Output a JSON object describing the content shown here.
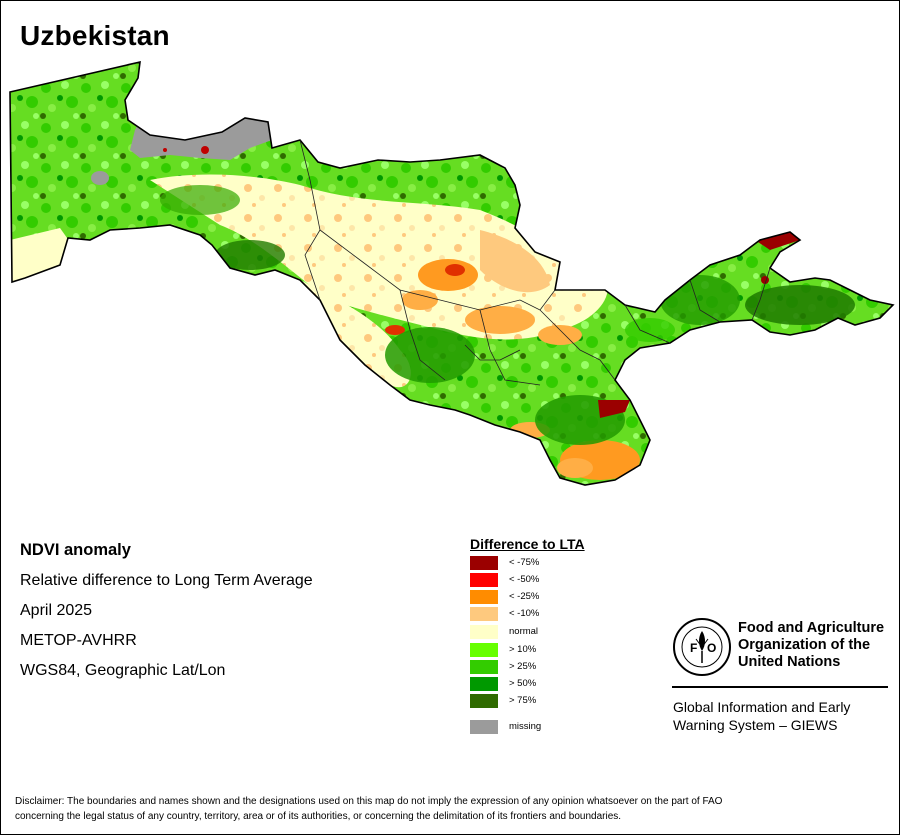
{
  "title": "Uzbekistan",
  "info": {
    "line1": "NDVI anomaly",
    "line2": "Relative difference to Long Term Average",
    "line3": "April 2025",
    "line4": "METOP-AVHRR",
    "line5": "WGS84, Geographic Lat/Lon"
  },
  "legend": {
    "title": "Difference to LTA",
    "items": [
      {
        "label": "< -75%",
        "color": "#9b0000"
      },
      {
        "label": "< -50%",
        "color": "#ff0000"
      },
      {
        "label": "< -25%",
        "color": "#ff8c00"
      },
      {
        "label": "< -10%",
        "color": "#fec97e"
      },
      {
        "label": "normal",
        "color": "#ffffc8"
      },
      {
        "label": "> 10%",
        "color": "#66ff00"
      },
      {
        "label": "> 25%",
        "color": "#33cc00"
      },
      {
        "label": "> 50%",
        "color": "#009900"
      },
      {
        "label": "> 75%",
        "color": "#2f6b00"
      },
      {
        "label": "missing",
        "color": "#9b9b9b"
      }
    ]
  },
  "fao": {
    "logo_text": "FAO",
    "logo_motto": "FIAT PANIS",
    "name_line1": "Food and Agriculture",
    "name_line2": "Organization of the",
    "name_line3": "United Nations",
    "giews_line1": "Global Information and Early",
    "giews_line2": "Warning System – GIEWS"
  },
  "disclaimer_line1": "Disclaimer: The boundaries and names shown and the designations used on this map do not imply the expression of any opinion whatsoever on the part of FAO",
  "disclaimer_line2": "concerning the legal status of any country, territory, area or of its authorities, or concerning the delimitation of its frontiers and boundaries."
}
